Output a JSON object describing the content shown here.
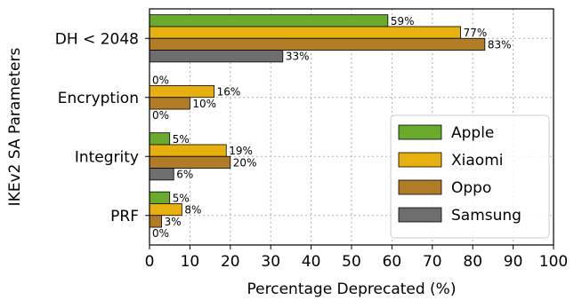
{
  "chart_data": {
    "type": "bar",
    "orientation": "horizontal",
    "categories": [
      "DH < 2048",
      "Encryption",
      "Integrity",
      "PRF"
    ],
    "series": [
      {
        "name": "Apple",
        "values": [
          59,
          0,
          5,
          5
        ],
        "labels": [
          "59%",
          "0%",
          "5%",
          "5%"
        ],
        "color": "#6aab2e"
      },
      {
        "name": "Xiaomi",
        "values": [
          77,
          16,
          19,
          8
        ],
        "labels": [
          "77%",
          "16%",
          "19%",
          "8%"
        ],
        "color": "#e8b00e"
      },
      {
        "name": "Oppo",
        "values": [
          83,
          10,
          20,
          3
        ],
        "labels": [
          "83%",
          "10%",
          "20%",
          "3%"
        ],
        "color": "#b07c26"
      },
      {
        "name": "Samsung",
        "values": [
          33,
          0,
          6,
          0
        ],
        "labels": [
          "33%",
          "0%",
          "6%",
          "0%"
        ],
        "color": "#6e6e6e"
      }
    ],
    "xlabel": "Percentage Deprecated (%)",
    "ylabel": "IKEv2 SA Parameters",
    "xlim": [
      0,
      100
    ],
    "xticks": [
      "0",
      "10",
      "20",
      "30",
      "40",
      "50",
      "60",
      "70",
      "80",
      "90",
      "100"
    ],
    "grid": true,
    "legend_position": "lower-right"
  }
}
